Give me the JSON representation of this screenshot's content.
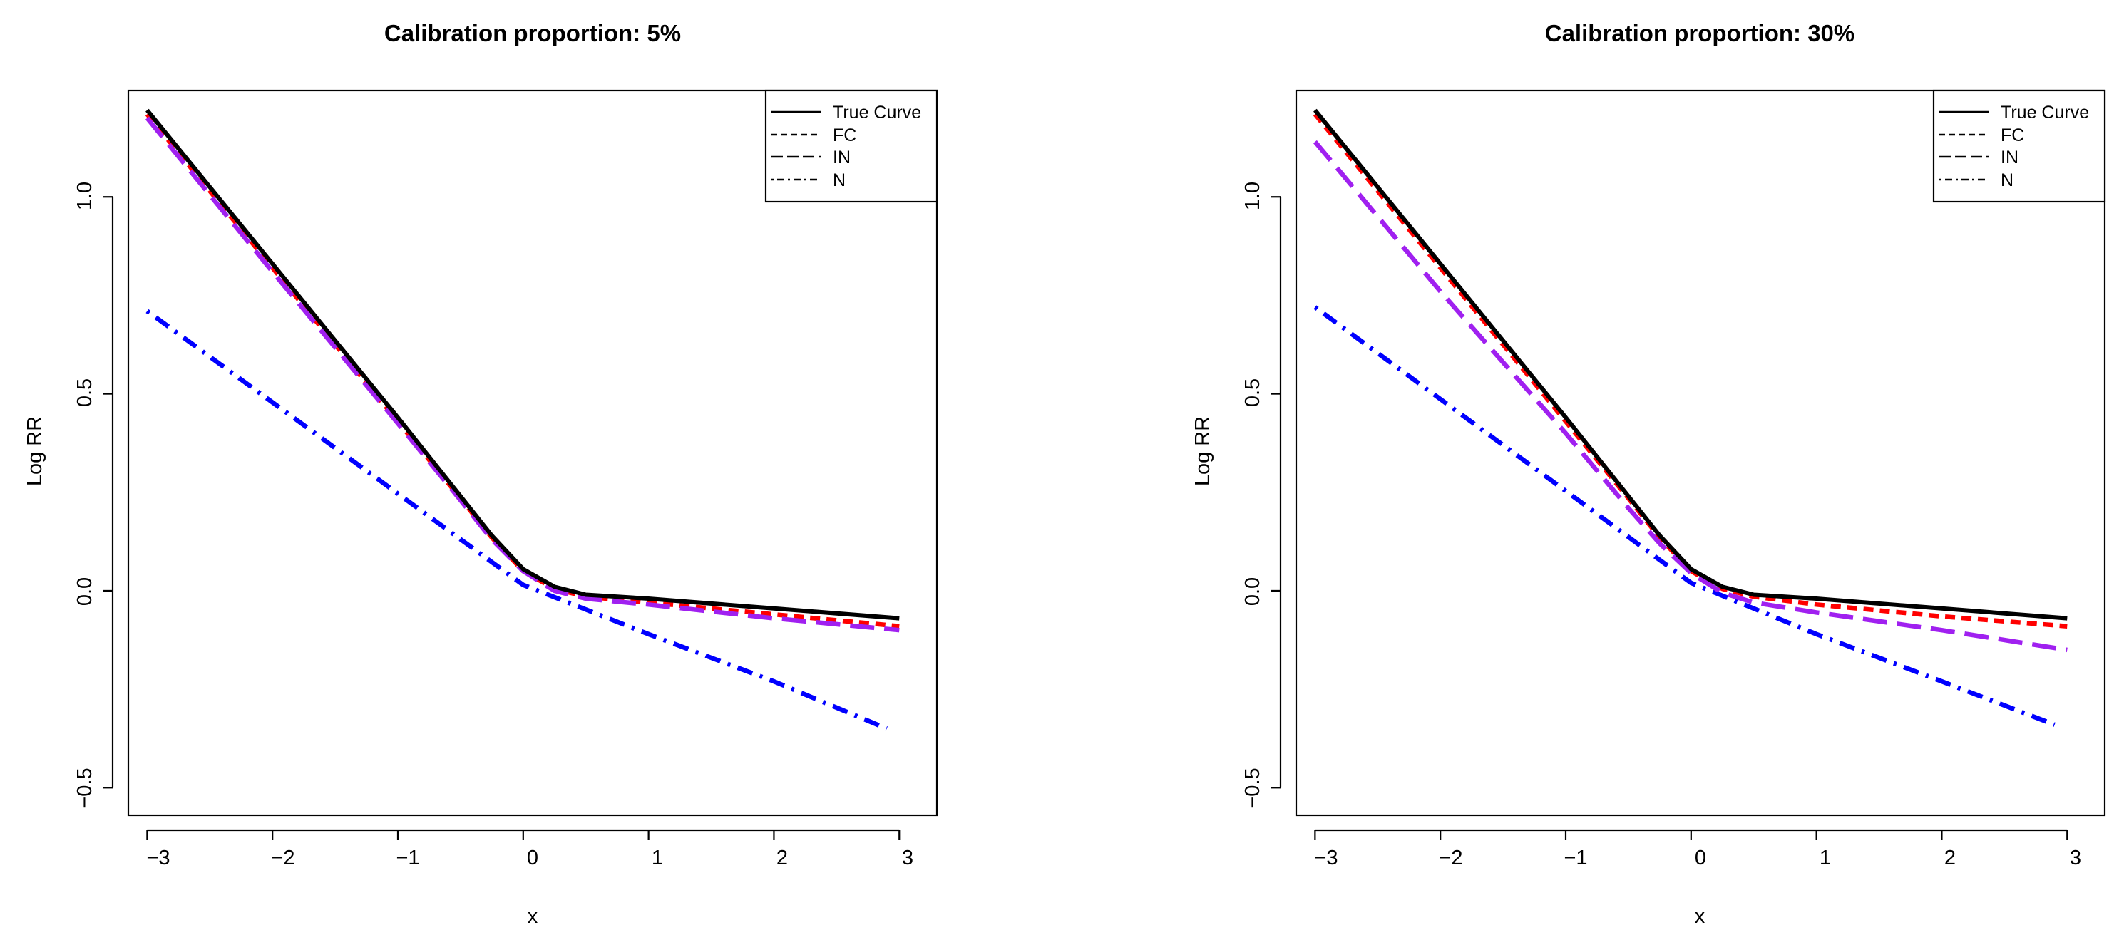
{
  "chart_data": [
    {
      "type": "line",
      "title": "Calibration proportion: 5%",
      "xlabel": "x",
      "ylabel": "Log RR",
      "xlim": [
        -3.15,
        3.3
      ],
      "ylim": [
        -0.57,
        1.27
      ],
      "xticks": [
        -3,
        -2,
        -1,
        0,
        1,
        2,
        3
      ],
      "yticks": [
        -0.5,
        0.0,
        0.5,
        1.0
      ],
      "xtick_labels": [
        "−3",
        "−2",
        "−1",
        "0",
        "1",
        "2",
        "3"
      ],
      "ytick_labels": [
        "−0.5",
        "0.0",
        "0.5",
        "1.0"
      ],
      "legend_position": "top-right",
      "series": [
        {
          "name": "True Curve",
          "key": "true",
          "legend": "True Curve",
          "color": "#000000",
          "style": "solid",
          "x": [
            -3,
            -2,
            -1,
            -0.5,
            -0.25,
            0,
            0.25,
            0.5,
            1,
            2,
            3
          ],
          "y": [
            1.22,
            0.83,
            0.44,
            0.24,
            0.14,
            0.055,
            0.01,
            -0.01,
            -0.02,
            -0.045,
            -0.07
          ]
        },
        {
          "name": "FC",
          "key": "fc",
          "legend": "FC",
          "color": "#ff0000",
          "style": "short-dash",
          "x": [
            -3,
            -2,
            -1,
            -0.5,
            -0.25,
            0,
            0.25,
            0.5,
            1,
            2,
            3
          ],
          "y": [
            1.21,
            0.82,
            0.43,
            0.235,
            0.135,
            0.05,
            0.005,
            -0.015,
            -0.03,
            -0.06,
            -0.09
          ]
        },
        {
          "name": "IN",
          "key": "in",
          "legend": "IN",
          "color": "#a020f0",
          "style": "long-dash",
          "x": [
            -3,
            -2,
            -1,
            -0.5,
            -0.25,
            0,
            0.25,
            0.5,
            1,
            2,
            3
          ],
          "y": [
            1.2,
            0.81,
            0.425,
            0.23,
            0.13,
            0.05,
            0.0,
            -0.02,
            -0.035,
            -0.07,
            -0.1
          ]
        },
        {
          "name": "N",
          "key": "n",
          "legend": "N",
          "color": "#0000ff",
          "style": "dot-dash",
          "x": [
            -3,
            0,
            1,
            2,
            2.9
          ],
          "y": [
            0.71,
            0.015,
            -0.11,
            -0.23,
            -0.35
          ]
        }
      ]
    },
    {
      "type": "line",
      "title": "Calibration proportion: 30%",
      "xlabel": "x",
      "ylabel": "Log RR",
      "xlim": [
        -3.15,
        3.3
      ],
      "ylim": [
        -0.57,
        1.27
      ],
      "xticks": [
        -3,
        -2,
        -1,
        0,
        1,
        2,
        3
      ],
      "yticks": [
        -0.5,
        0.0,
        0.5,
        1.0
      ],
      "xtick_labels": [
        "−3",
        "−2",
        "−1",
        "0",
        "1",
        "2",
        "3"
      ],
      "ytick_labels": [
        "−0.5",
        "0.0",
        "0.5",
        "1.0"
      ],
      "legend_position": "top-right",
      "series": [
        {
          "name": "True Curve",
          "key": "true",
          "legend": "True Curve",
          "color": "#000000",
          "style": "solid",
          "x": [
            -3,
            -2,
            -1,
            -0.5,
            -0.25,
            0,
            0.25,
            0.5,
            1,
            2,
            3
          ],
          "y": [
            1.22,
            0.83,
            0.44,
            0.24,
            0.14,
            0.055,
            0.01,
            -0.01,
            -0.02,
            -0.045,
            -0.07
          ]
        },
        {
          "name": "FC",
          "key": "fc",
          "legend": "FC",
          "color": "#ff0000",
          "style": "short-dash",
          "x": [
            -3,
            -2,
            -1,
            -0.5,
            -0.25,
            0,
            0.25,
            0.5,
            1,
            2,
            3
          ],
          "y": [
            1.21,
            0.82,
            0.43,
            0.235,
            0.135,
            0.05,
            0.005,
            -0.015,
            -0.035,
            -0.065,
            -0.09
          ]
        },
        {
          "name": "IN",
          "key": "in",
          "legend": "IN",
          "color": "#a020f0",
          "style": "long-dash",
          "x": [
            -3,
            -2,
            -1,
            -0.5,
            -0.25,
            0,
            0.25,
            0.5,
            1,
            2,
            3
          ],
          "y": [
            1.14,
            0.76,
            0.4,
            0.21,
            0.12,
            0.045,
            -0.005,
            -0.03,
            -0.055,
            -0.1,
            -0.15
          ]
        },
        {
          "name": "N",
          "key": "n",
          "legend": "N",
          "color": "#0000ff",
          "style": "dot-dash",
          "x": [
            -3,
            0,
            1,
            2,
            2.9
          ],
          "y": [
            0.72,
            0.02,
            -0.11,
            -0.23,
            -0.34
          ]
        }
      ]
    }
  ]
}
